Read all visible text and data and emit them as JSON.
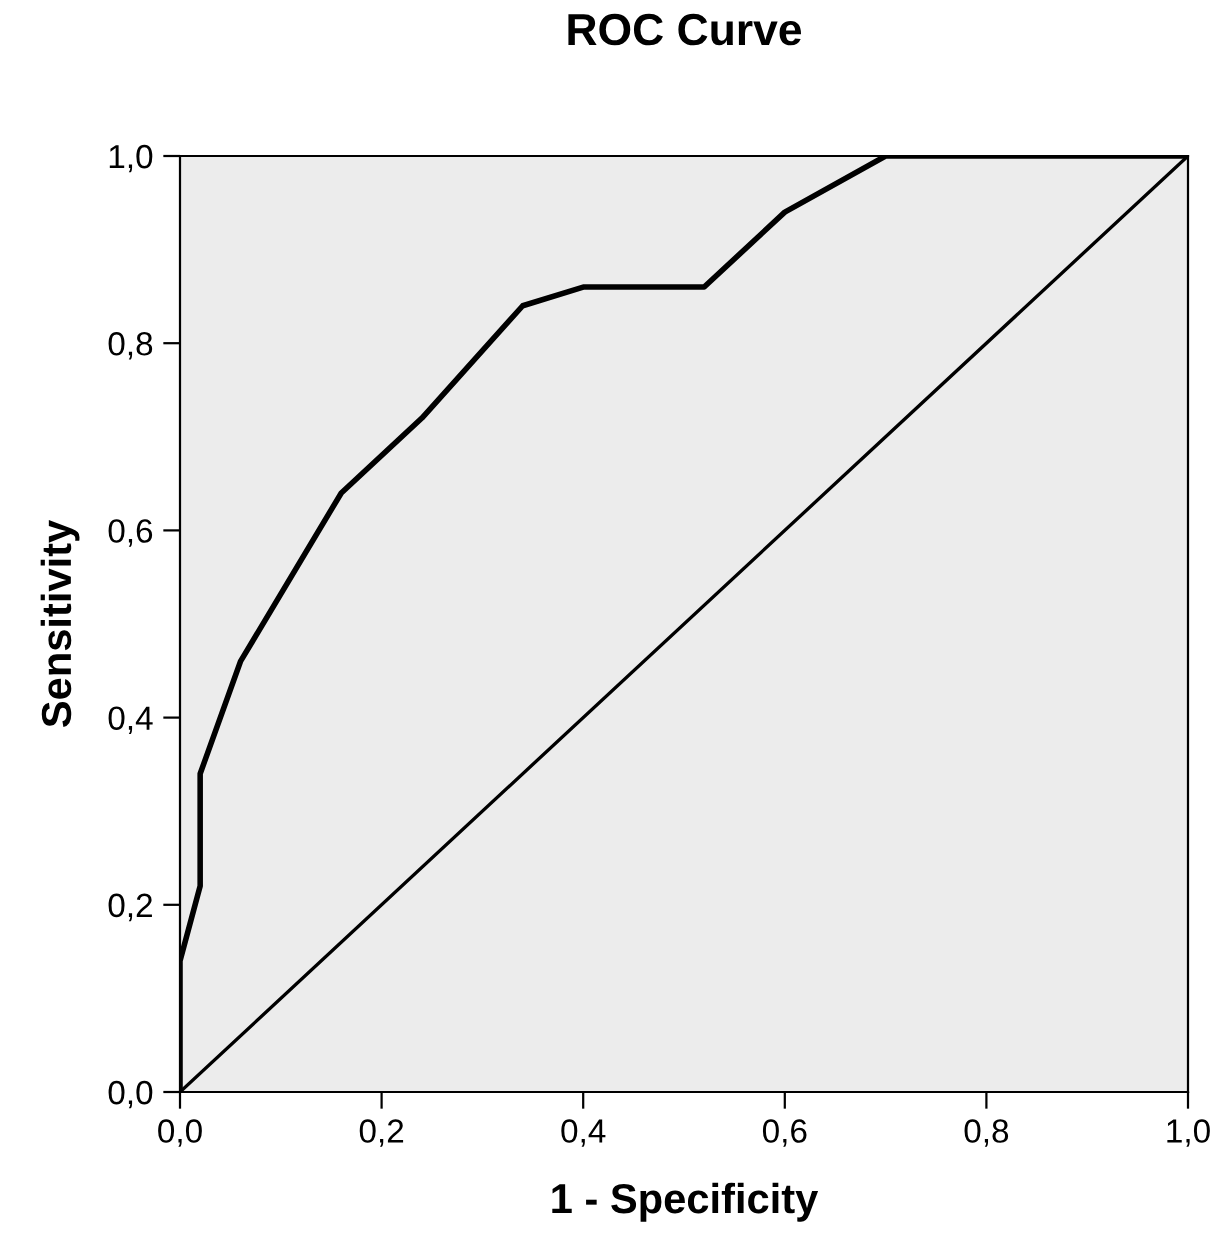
{
  "chart_data": {
    "type": "line",
    "title": "ROC Curve",
    "xlabel": "1 - Specificity",
    "ylabel": "Sensitivity",
    "series": [
      {
        "color": "#000000",
        "x": [
          0,
          0,
          0.02,
          0.02,
          0.06,
          0.16,
          0.24,
          0.34,
          0.4,
          0.52,
          0.6,
          0.7,
          1.0
        ],
        "values": [
          0,
          0.14,
          0.22,
          0.34,
          0.46,
          0.64,
          0.72,
          0.84,
          0.86,
          0.86,
          0.94,
          1.0,
          1.0
        ]
      },
      {
        "color": "#000000",
        "x": [
          0,
          1.0
        ],
        "values": [
          0,
          1.0
        ]
      }
    ],
    "xlim": [
      0,
      1.0
    ],
    "ylim": [
      0,
      1.0
    ],
    "xticks": [
      {
        "value": 0,
        "label": "0,0"
      },
      {
        "value": 0.2,
        "label": "0,2"
      },
      {
        "value": 0.4,
        "label": "0,4"
      },
      {
        "value": 0.6,
        "label": "0,6"
      },
      {
        "value": 0.8,
        "label": "0,8"
      },
      {
        "value": 1.0,
        "label": "1,0"
      }
    ],
    "yticks": [
      {
        "value": 0,
        "label": "0,0"
      },
      {
        "value": 0.2,
        "label": "0,2"
      },
      {
        "value": 0.4,
        "label": "0,4"
      },
      {
        "value": 0.6,
        "label": "0,6"
      },
      {
        "value": 0.8,
        "label": "0,8"
      },
      {
        "value": 1.0,
        "label": "1,0"
      }
    ],
    "grid": false,
    "marker": "none",
    "line_style": "solid"
  }
}
